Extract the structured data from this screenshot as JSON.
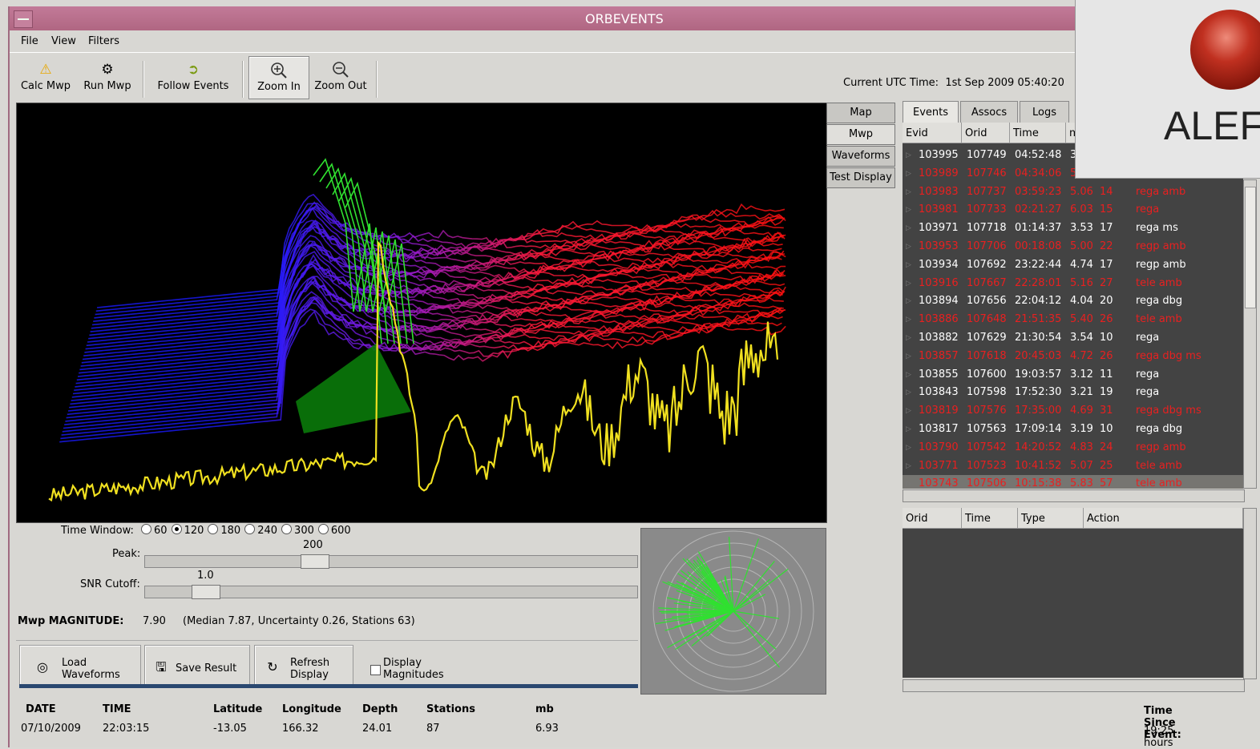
{
  "window": {
    "title": "ORBEVENTS"
  },
  "menu": [
    "File",
    "View",
    "Filters"
  ],
  "toolbar": {
    "calc_mwp": "Calc Mwp",
    "run_mwp": "Run Mwp",
    "follow_events": "Follow Events",
    "zoom_in": "Zoom In",
    "zoom_out": "Zoom Out",
    "utc_label": "Current UTC Time:",
    "utc_value": "1st Sep 2009 05:40:20"
  },
  "side_tabs": [
    "Map",
    "Mwp",
    "Waveforms",
    "Test Display"
  ],
  "right_tabs": [
    "Events",
    "Assocs",
    "Logs"
  ],
  "event_columns": [
    "Evid",
    "Orid",
    "Time",
    "m"
  ],
  "events": [
    {
      "evid": "103995",
      "orid": "107749",
      "time": "04:52:48",
      "mag": "3",
      "n": "",
      "type": "",
      "color": "white"
    },
    {
      "evid": "103989",
      "orid": "107746",
      "time": "04:34:06",
      "mag": "5",
      "n": "",
      "type": "",
      "color": "red"
    },
    {
      "evid": "103983",
      "orid": "107737",
      "time": "03:59:23",
      "mag": "5.06",
      "n": "14",
      "type": "rega amb",
      "color": "red"
    },
    {
      "evid": "103981",
      "orid": "107733",
      "time": "02:21:27",
      "mag": "6.03",
      "n": "15",
      "type": "rega",
      "color": "red"
    },
    {
      "evid": "103971",
      "orid": "107718",
      "time": "01:14:37",
      "mag": "3.53",
      "n": "17",
      "type": "rega ms",
      "color": "white"
    },
    {
      "evid": "103953",
      "orid": "107706",
      "time": "00:18:08",
      "mag": "5.00",
      "n": "22",
      "type": "regp amb",
      "color": "red"
    },
    {
      "evid": "103934",
      "orid": "107692",
      "time": "23:22:44",
      "mag": "4.74",
      "n": "17",
      "type": "regp  amb",
      "color": "white"
    },
    {
      "evid": "103916",
      "orid": "107667",
      "time": "22:28:01",
      "mag": "5.16",
      "n": "27",
      "type": "tele amb",
      "color": "red"
    },
    {
      "evid": "103894",
      "orid": "107656",
      "time": "22:04:12",
      "mag": "4.04",
      "n": "20",
      "type": "rega dbg",
      "color": "white"
    },
    {
      "evid": "103886",
      "orid": "107648",
      "time": "21:51:35",
      "mag": "5.40",
      "n": "26",
      "type": "tele  amb",
      "color": "red"
    },
    {
      "evid": "103882",
      "orid": "107629",
      "time": "21:30:54",
      "mag": "3.54",
      "n": "10",
      "type": "rega",
      "color": "white"
    },
    {
      "evid": "103857",
      "orid": "107618",
      "time": "20:45:03",
      "mag": "4.72",
      "n": "26",
      "type": "rega dbg ms",
      "color": "red"
    },
    {
      "evid": "103855",
      "orid": "107600",
      "time": "19:03:57",
      "mag": "3.12",
      "n": "11",
      "type": "rega",
      "color": "white"
    },
    {
      "evid": "103843",
      "orid": "107598",
      "time": "17:52:30",
      "mag": "3.21",
      "n": "19",
      "type": "rega",
      "color": "white"
    },
    {
      "evid": "103819",
      "orid": "107576",
      "time": "17:35:00",
      "mag": "4.69",
      "n": "31",
      "type": "rega dbg ms",
      "color": "red"
    },
    {
      "evid": "103817",
      "orid": "107563",
      "time": "17:09:14",
      "mag": "3.19",
      "n": "10",
      "type": "rega dbg",
      "color": "white"
    },
    {
      "evid": "103790",
      "orid": "107542",
      "time": "14:20:52",
      "mag": "4.83",
      "n": "24",
      "type": "regp  amb",
      "color": "red"
    },
    {
      "evid": "103771",
      "orid": "107523",
      "time": "10:41:52",
      "mag": "5.07",
      "n": "25",
      "type": "tele amb",
      "color": "red"
    },
    {
      "evid": "103743",
      "orid": "107506",
      "time": "10:15:38",
      "mag": "5.83",
      "n": "57",
      "type": "tele amb",
      "color": "red",
      "selected": true
    }
  ],
  "assoc_columns": [
    "Orid",
    "Time",
    "Type",
    "Action"
  ],
  "controls": {
    "time_window_label": "Time Window:",
    "time_window_options": [
      "60",
      "120",
      "180",
      "240",
      "300",
      "600"
    ],
    "time_window_selected": "120",
    "peak_label": "Peak:",
    "peak_value": "200",
    "snr_label": "SNR Cutoff:",
    "snr_value": "1.0",
    "mwp_label": "Mwp MAGNITUDE:",
    "mwp_value": "7.90",
    "mwp_detail": "(Median 7.87, Uncertainty 0.26, Stations 63)"
  },
  "buttons": {
    "load": [
      "Load",
      "Waveforms"
    ],
    "save": "Save Result",
    "refresh": [
      "Refresh",
      "Display"
    ],
    "display_mag": [
      "Display",
      "Magnitudes"
    ]
  },
  "info": {
    "headers": [
      "DATE",
      "TIME",
      "Latitude",
      "Longitude",
      "Depth",
      "Stations",
      "mb"
    ],
    "values": [
      "07/10/2009",
      "22:03:15",
      "-13.05",
      "166.32",
      "24.01",
      "87",
      "6.93"
    ],
    "time_since_label": "Time Since Event:",
    "time_since_value": "19:25 hours"
  },
  "alert": {
    "text": "ALEF"
  }
}
